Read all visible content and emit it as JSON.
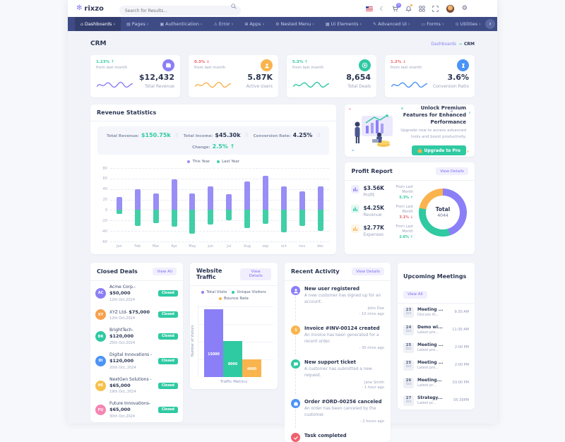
{
  "header": {
    "logo_text": "rixzo",
    "search_placeholder": "Search for Results...",
    "cart_badge": "0"
  },
  "nav": {
    "items": [
      {
        "label": "Dashboards",
        "icon": "home",
        "active": true
      },
      {
        "label": "Pages",
        "icon": "pages",
        "active": false
      },
      {
        "label": "Authentication",
        "icon": "lock",
        "active": false
      },
      {
        "label": "Error",
        "icon": "error",
        "active": false
      },
      {
        "label": "Apps",
        "icon": "apps",
        "active": false
      },
      {
        "label": "Nested Menu",
        "icon": "nested-menu",
        "active": false
      },
      {
        "label": "Ui Elements",
        "icon": "ui-elements",
        "active": false
      },
      {
        "label": "Advanced Ui",
        "icon": "advanced-ui",
        "active": false
      },
      {
        "label": "Forms",
        "icon": "forms",
        "active": false
      },
      {
        "label": "Utilities",
        "icon": "utilities",
        "active": false
      }
    ]
  },
  "page": {
    "title": "CRM",
    "breadcrumb_parent": "Dashboards",
    "breadcrumb_current": "CRM"
  },
  "stats": [
    {
      "icon": "wallet",
      "color": "#8b7ff7",
      "change": "1.23% ↑",
      "change_color": "#2fc9a2",
      "period": "from last month",
      "value": "$12,432",
      "label": "Total Revenue"
    },
    {
      "icon": "user",
      "color": "#f9b44d",
      "change": "0.3% ↓",
      "change_color": "#f0616e",
      "period": "from last month",
      "value": "5.87K",
      "label": "Active Users"
    },
    {
      "icon": "target",
      "color": "#2fc9a2",
      "change": "5.3% ↑",
      "change_color": "#2fc9a2",
      "period": "from last month",
      "value": "8,654",
      "label": "Total Deals"
    },
    {
      "icon": "hourglass",
      "color": "#4b93f7",
      "change": "1.2% ↓",
      "change_color": "#f0616e",
      "period": "from last month",
      "value": "3.6%",
      "label": "Conversion Ratio"
    }
  ],
  "revenue": {
    "title": "Revenue Statistics",
    "summary": [
      {
        "label": "Total Revenue:",
        "value": "$150.75k",
        "color": "#2fc9a2"
      },
      {
        "label": "Total Income:",
        "value": "$45.30k",
        "color": "#2b3552"
      },
      {
        "label": "Conversion Rate:",
        "value": "4.25%",
        "color": "#2b3552"
      }
    ],
    "change_label": "Change:",
    "change_value": "2.5% ↑",
    "chart_data": {
      "type": "bar",
      "categories": [
        "Jan",
        "Feb",
        "Mar",
        "Apr",
        "May",
        "Jun",
        "Jul",
        "Aug",
        "sep",
        "oct",
        "nov",
        "dec"
      ],
      "series": [
        {
          "name": "This Year",
          "color": "#988ef6",
          "values": [
            25,
            40,
            32,
            58,
            32,
            45,
            30,
            55,
            65,
            45,
            35,
            45
          ]
        },
        {
          "name": "Last Year",
          "color": "#41cfa7",
          "values": [
            -8,
            -30,
            -25,
            -32,
            -45,
            -28,
            -20,
            -35,
            -27,
            -42,
            -30,
            -40
          ]
        }
      ],
      "ylim": [
        -60,
        80
      ],
      "yticks": [
        80,
        60,
        40,
        20,
        0,
        -20,
        -40,
        -60
      ],
      "legend_position": "top"
    }
  },
  "promo": {
    "title": "Unlock Premium Features for Enhanced Performance",
    "desc": "Upgrade now to access advanced tools and boost productivity.",
    "button": "Upgrade to Pro"
  },
  "profit": {
    "title": "Profit Report",
    "action": "View Details",
    "rows": [
      {
        "value": "$3.56K",
        "label": "Profit",
        "from": "From Last Month",
        "change": "5.3% ↑",
        "change_color": "#2fc9a2",
        "color": "#8b7ff7"
      },
      {
        "value": "$4.25K",
        "label": "Revenue",
        "from": "From Last Month",
        "change": "3.1% ↓",
        "change_color": "#f0616e",
        "color": "#2fc9a2"
      },
      {
        "value": "$2.77K",
        "label": "Expenses",
        "from": "From Last Month",
        "change": "2.6% ↑",
        "change_color": "#2fc9a2",
        "color": "#f9b44d"
      }
    ],
    "chart_data": {
      "type": "pie",
      "labels": [
        "Profit",
        "Revenue",
        "Expenses"
      ],
      "values": [
        45,
        33,
        22
      ],
      "colors": [
        "#8b7ff7",
        "#2fc9a2",
        "#f9b44d"
      ],
      "center_label": "Total",
      "center_value": "4044"
    }
  },
  "closed_deals": {
    "title": "Closed Deals",
    "action": "View All",
    "items": [
      {
        "initials": "AC",
        "color": "#8b7ff7",
        "name": "Acme Corp.-",
        "amount": "$50,000",
        "date": "12th Oct,2024",
        "badge": "Closed"
      },
      {
        "initials": "XY",
        "color": "#f8a04b",
        "name": "XYZ Ltd-",
        "amount": "$75,000",
        "date": "12th Oct,2024",
        "badge": "Closed"
      },
      {
        "initials": "BR",
        "color": "#2fc9a2",
        "name": "BrightTech-",
        "amount": "$120,000",
        "date": "25th Oct,2024",
        "badge": "Closed"
      },
      {
        "initials": "DI",
        "color": "#4b93f7",
        "name": "Digital Innovations -",
        "amount": "$120,000",
        "date": "20th Oct, 2024",
        "badge": "Closed"
      },
      {
        "initials": "NE",
        "color": "#f7c04a",
        "name": "NextGen Solutions -",
        "amount": "$65,000",
        "date": "19th Oct, 2024",
        "badge": "Closed"
      },
      {
        "initials": "FU",
        "color": "#f585b1",
        "name": "Future Innovations-",
        "amount": "$65,000",
        "date": "30th Oct,2024",
        "badge": "Closed"
      }
    ]
  },
  "website_traffic": {
    "title": "Website Traffic",
    "action": "View Details",
    "chart_data": {
      "type": "bar",
      "categories": [
        "Total Visits",
        "Unique Visitors",
        "Bounce Rate"
      ],
      "values": [
        15000,
        8000,
        4000
      ],
      "colors": [
        "#8b7ff7",
        "#2fc9a2",
        "#f9b44d"
      ],
      "data_labels": [
        "15000",
        "8000",
        "4000"
      ],
      "ylabel": "Number of Visitors",
      "xlabel": "Traffic Metrics",
      "ylim": [
        0,
        16000
      ]
    }
  },
  "recent_activity": {
    "title": "Recent Activity",
    "action": "View Details",
    "items": [
      {
        "icon": "user",
        "color": "#8b7ff7",
        "title": "New user registered",
        "desc": "A new customer has signed up for an account.",
        "who": "John Doe",
        "time": "- 10 mins ago"
      },
      {
        "icon": "invoice",
        "color": "#f9b44d",
        "title": "Invoice #INV-00124 created",
        "desc": "An invoice has been generated for a recent order.",
        "who": "",
        "time": "- 30 mins ago"
      },
      {
        "icon": "ticket",
        "color": "#2fc9a2",
        "title": "New support ticket",
        "desc": "A customer has submitted a new request.",
        "who": "Jane Smith",
        "time": "- 1 hour ago"
      },
      {
        "icon": "order",
        "color": "#4b93f7",
        "title": "Order #ORD-00256 canceled",
        "desc": "An order has been canceled by the customer.",
        "who": "",
        "time": "- 2 hours ago"
      },
      {
        "icon": "task",
        "color": "#f0616e",
        "title": "Task completed",
        "desc": "",
        "who": "",
        "time": ""
      }
    ]
  },
  "upcoming_meetings": {
    "title": "Upcoming Meetings",
    "action": "View All",
    "items": [
      {
        "day": "23",
        "month": "Oct",
        "title": "Meeting ...",
        "sub": "Discuss th...",
        "time": "9:30 AM"
      },
      {
        "day": "24",
        "month": "Oct",
        "title": "Demo wi...",
        "sub": "Latest pro...",
        "time": "11:30 AM"
      },
      {
        "day": "25",
        "month": "Oct",
        "title": "Meeting ...",
        "sub": "Latest pro...",
        "time": "2:00 PM"
      },
      {
        "day": "25",
        "month": "Oct",
        "title": "Meeting ...",
        "sub": "Latest pro...",
        "time": "2:00 PM"
      },
      {
        "day": "26",
        "month": "Oct",
        "title": "Meeting...",
        "sub": "Latest pr...",
        "time": "03:00 PM"
      },
      {
        "day": "27",
        "month": "Oct",
        "title": "Strategy...",
        "sub": "Latest pr...",
        "time": "05:30PM"
      }
    ]
  }
}
